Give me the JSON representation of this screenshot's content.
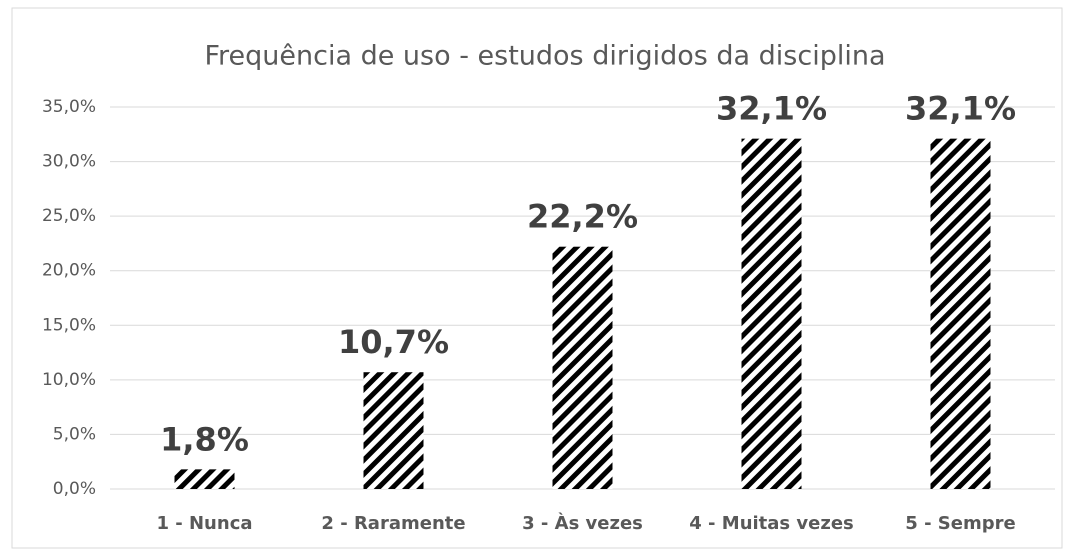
{
  "chart_data": {
    "type": "bar",
    "title": "Frequência de uso - estudos dirigidos da disciplina",
    "categories": [
      "1 - Nunca",
      "2 - Raramente",
      "3 - Às vezes",
      "4 - Muitas vezes",
      "5 - Sempre"
    ],
    "values": [
      1.8,
      10.7,
      22.2,
      32.1,
      32.1
    ],
    "value_labels": [
      "1,8%",
      "10,7%",
      "22,2%",
      "32,1%",
      "32,1%"
    ],
    "color": "#000000",
    "ylim": [
      0,
      35
    ],
    "yticks": [
      {
        "value": 0,
        "label": "0,0%"
      },
      {
        "value": 5,
        "label": "5,0%"
      },
      {
        "value": 10,
        "label": "10,0%"
      },
      {
        "value": 15,
        "label": "15,0%"
      },
      {
        "value": 20,
        "label": "20,0%"
      },
      {
        "value": 25,
        "label": "25,0%"
      },
      {
        "value": 30,
        "label": "30,0%"
      },
      {
        "value": 35,
        "label": "35,0%"
      }
    ],
    "grid": true
  }
}
